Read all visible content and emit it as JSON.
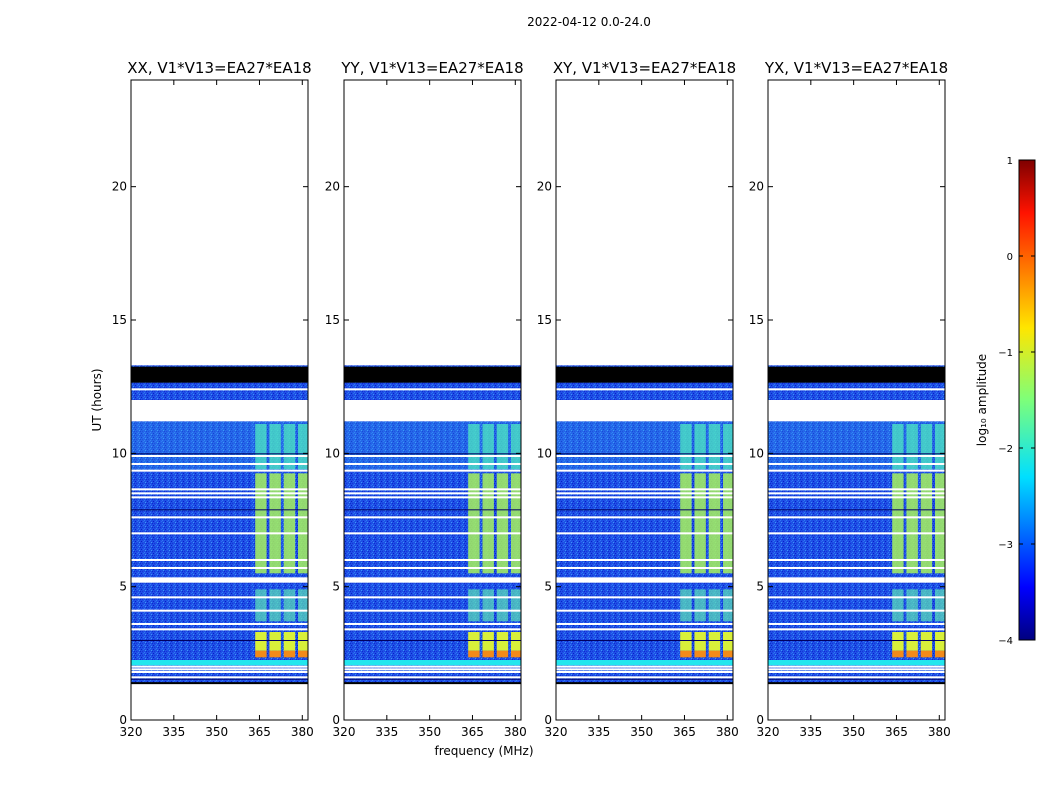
{
  "chart_data": {
    "type": "heatmap",
    "title": "2022-04-12 0.0-24.0",
    "xlabel": "frequency (MHz)",
    "ylabel": "UT (hours)",
    "xlim": [
      320,
      382
    ],
    "ylim": [
      0,
      24
    ],
    "xticks": [
      320,
      335,
      350,
      365,
      380
    ],
    "yticks": [
      0,
      5,
      10,
      15,
      20
    ],
    "panels": [
      {
        "title": "XX, V1*V13=EA27*EA18",
        "bright_band_start": 5.5
      },
      {
        "title": "YY, V1*V13=EA27*EA18",
        "bright_band_start": 5.5
      },
      {
        "title": "XY, V1*V13=EA27*EA18",
        "bright_band_start": 5.5
      },
      {
        "title": "YX, V1*V13=EA27*EA18",
        "bright_band_start": 5.5
      }
    ],
    "data_extent_hours": [
      1.4,
      13.3
    ],
    "black_band_hours": [
      12.65,
      13.25
    ],
    "gap_hours": [
      [
        11.2,
        12.0
      ],
      [
        5.15,
        5.35
      ]
    ],
    "white_lines_hours": [
      12.4,
      9.9,
      9.6,
      9.35,
      8.65,
      8.5,
      8.35,
      7.6,
      7.0,
      6.0,
      5.7,
      4.6,
      4.1,
      3.6,
      3.4,
      2.0,
      1.9,
      1.8,
      1.6
    ],
    "signal_channels_mhz": [
      [
        363.5,
        367.5
      ],
      [
        368.5,
        372.5
      ],
      [
        373.5,
        377.5
      ],
      [
        378.5,
        382.0
      ]
    ],
    "colorbar": {
      "label": "log₁₀ amplitude",
      "range": [
        -4,
        1
      ],
      "ticks": [
        1,
        0,
        -1,
        -2,
        -3,
        -4
      ],
      "tick_labels": [
        "1",
        "0",
        "−1",
        "−2",
        "−3",
        "−4"
      ]
    }
  }
}
